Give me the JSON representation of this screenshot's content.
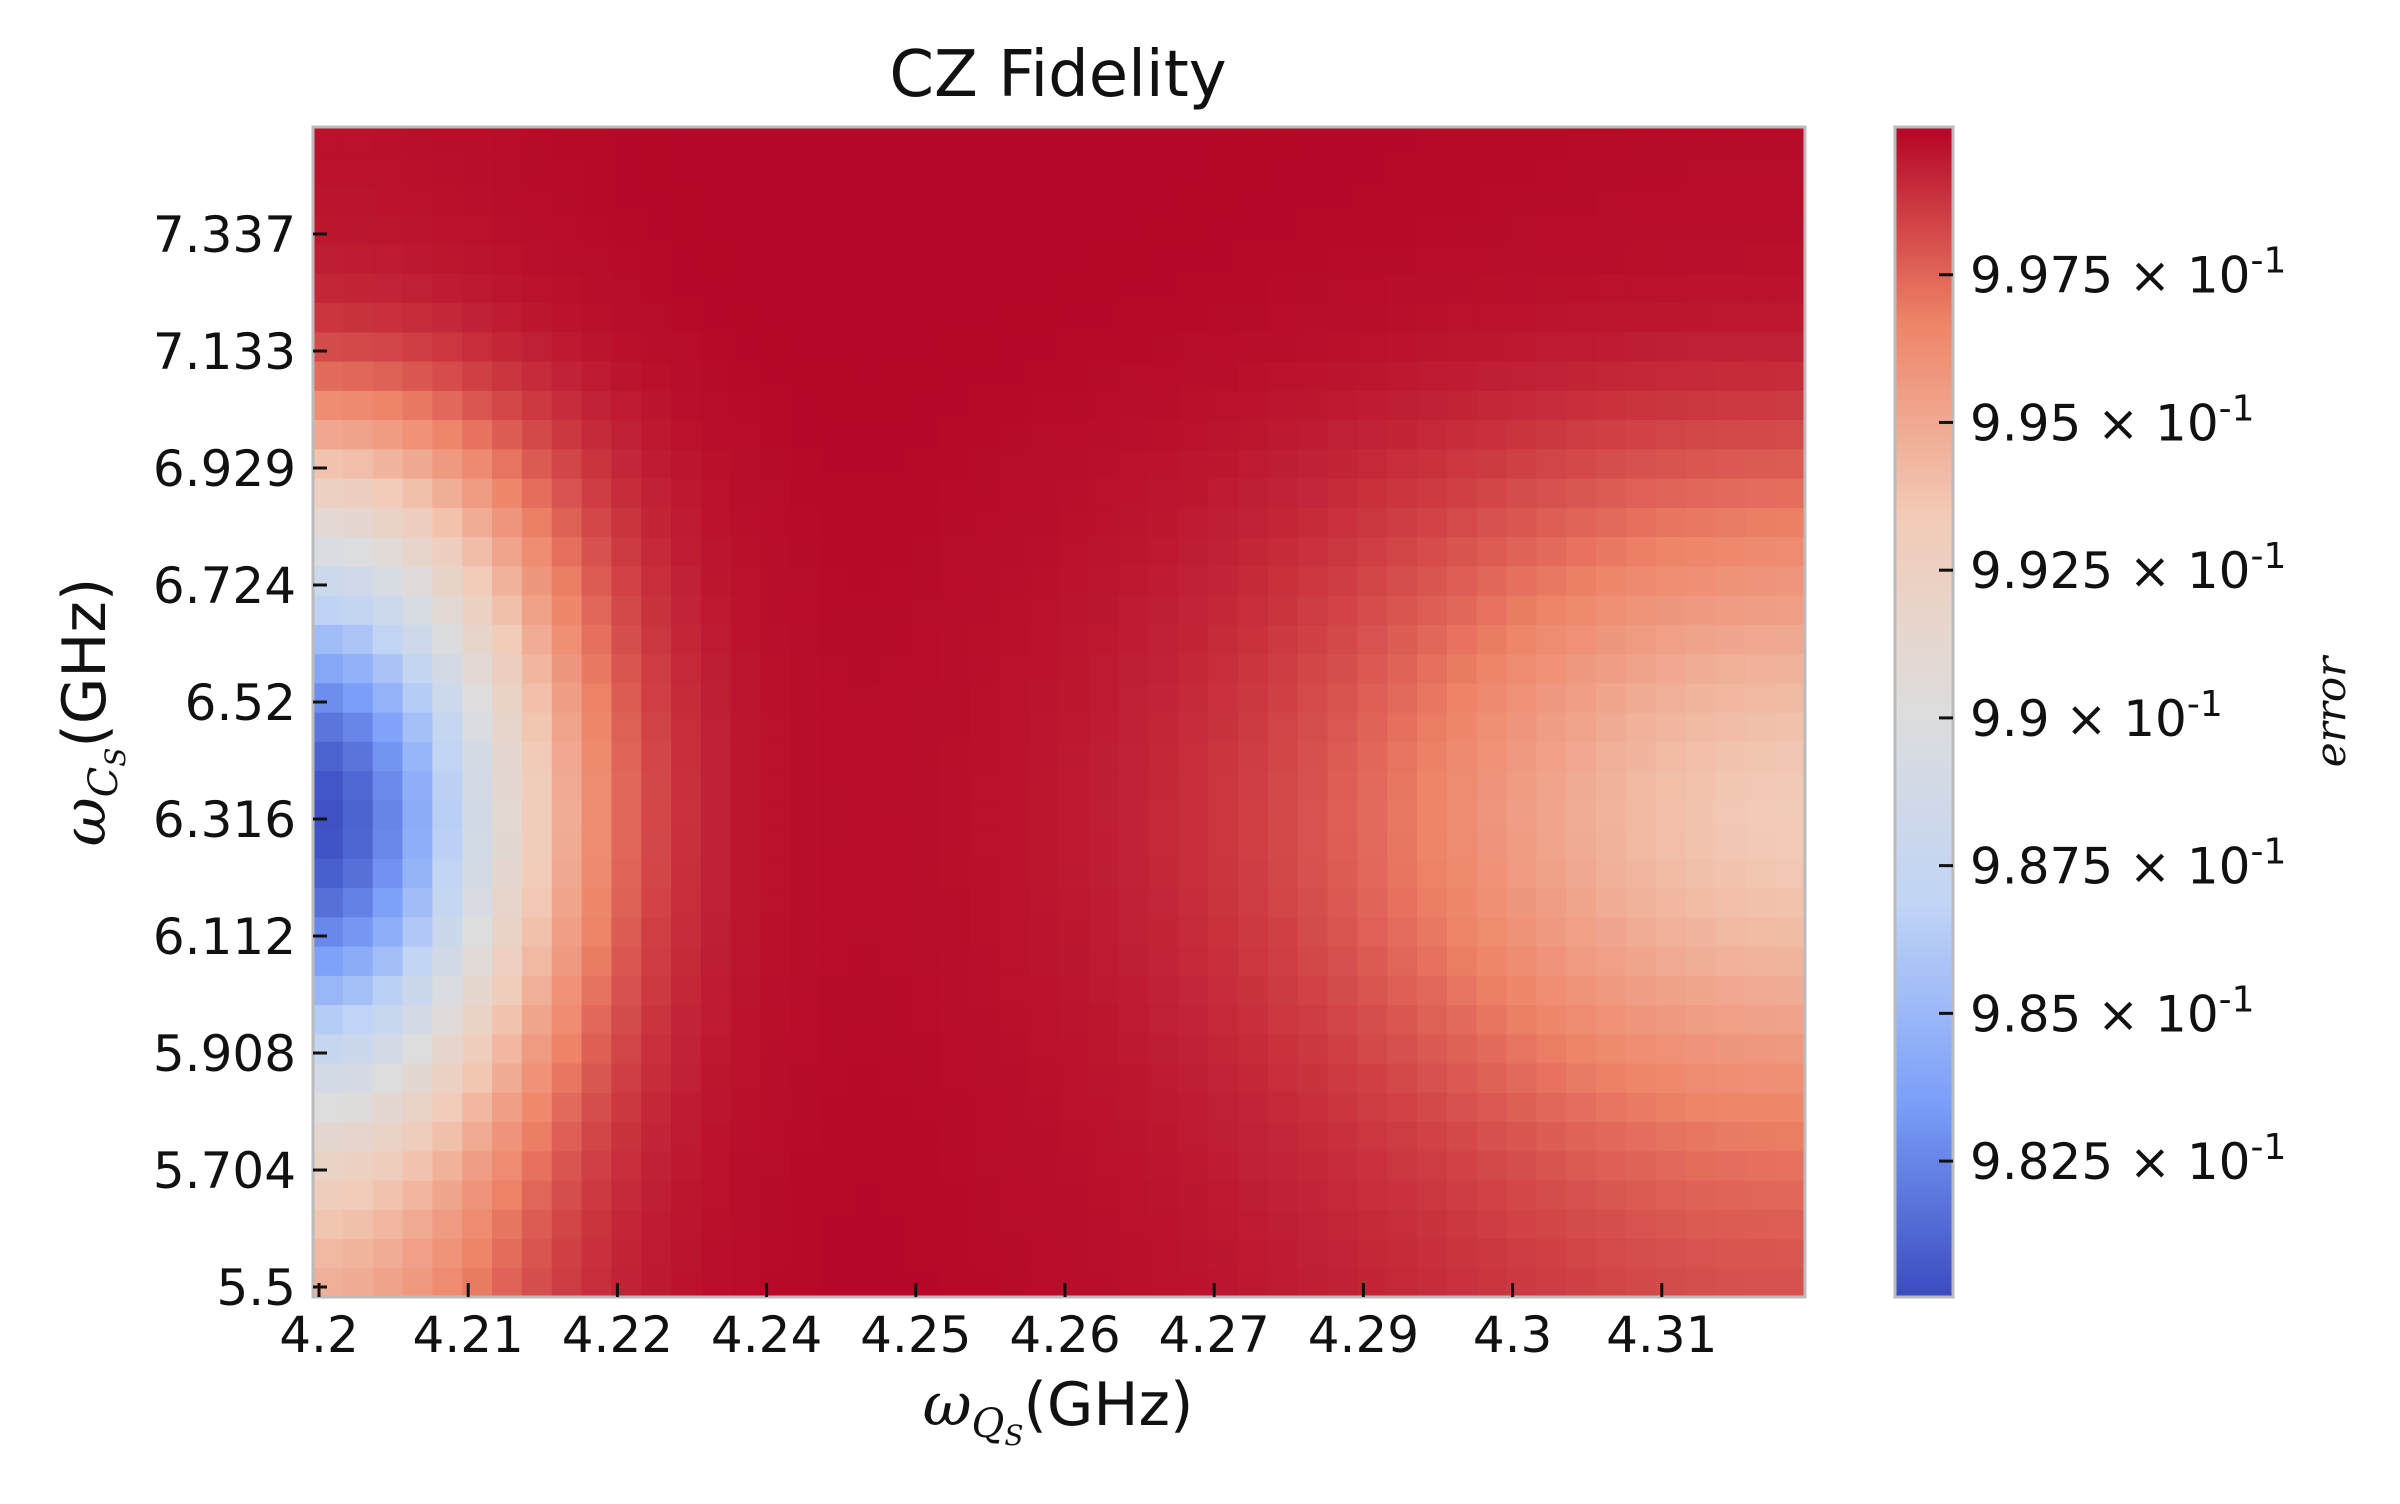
{
  "chart_data": {
    "type": "heatmap",
    "title": "CZ Fidelity",
    "xlabel": {
      "symbol": "ω",
      "subscript": "Q",
      "sub_subscript": "S",
      "unit": "(GHz)"
    },
    "ylabel": {
      "symbol": "ω",
      "subscript": "C",
      "sub_subscript": "S",
      "unit": "(GHz)"
    },
    "colorbar_label": "error",
    "colormap": "coolwarm",
    "colormap_stops": [
      "#3b4cc0",
      "#7b9ff9",
      "#c0d4f5",
      "#dddddd",
      "#f2cbb7",
      "#ee8468",
      "#b40426"
    ],
    "grid": false,
    "x_tick_labels": [
      "4.2",
      "4.21",
      "4.22",
      "4.24",
      "4.25",
      "4.26",
      "4.27",
      "4.29",
      "4.3",
      "4.31"
    ],
    "y_tick_labels": [
      "5.5",
      "5.704",
      "5.908",
      "6.112",
      "6.316",
      "6.52",
      "6.724",
      "6.929",
      "7.133",
      "7.337"
    ],
    "xlim": [
      4.2,
      4.32
    ],
    "ylim": [
      5.5,
      7.5
    ],
    "grid_size": {
      "columns": 50,
      "rows": 40
    },
    "colorbar": {
      "vmin": 0.9802,
      "vmax": 1.0,
      "ticks": [
        {
          "value": 0.9825,
          "mantissa": "9.825",
          "base": "10",
          "exponent": "-1"
        },
        {
          "value": 0.985,
          "mantissa": "9.85",
          "base": "10",
          "exponent": "-1"
        },
        {
          "value": 0.9875,
          "mantissa": "9.875",
          "base": "10",
          "exponent": "-1"
        },
        {
          "value": 0.99,
          "mantissa": "9.9",
          "base": "10",
          "exponent": "-1"
        },
        {
          "value": 0.9925,
          "mantissa": "9.925",
          "base": "10",
          "exponent": "-1"
        },
        {
          "value": 0.995,
          "mantissa": "9.95",
          "base": "10",
          "exponent": "-1"
        },
        {
          "value": 0.9975,
          "mantissa": "9.975",
          "base": "10",
          "exponent": "-1"
        }
      ]
    },
    "features": [
      {
        "region": "left edge minimum",
        "x": 4.2,
        "y": 6.3,
        "value": 0.9803
      },
      {
        "region": "central plateau",
        "x": 4.254,
        "y": 6.5,
        "value": 0.9999
      },
      {
        "region": "right-side dip",
        "x": 4.32,
        "y": 6.3,
        "value": 0.9935
      },
      {
        "region": "top band",
        "x": 4.26,
        "y": 7.45,
        "value": 0.9999
      }
    ]
  }
}
